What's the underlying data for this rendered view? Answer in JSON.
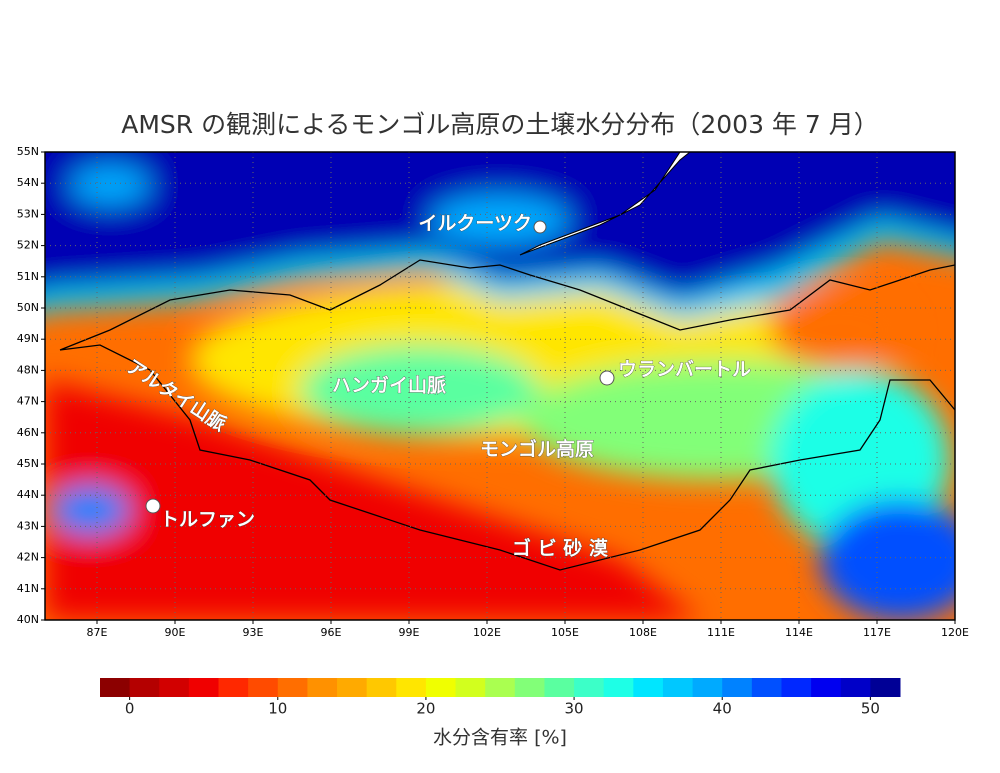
{
  "title": "AMSR の観測によるモンゴル高原の土壌水分分布（2003 年 7 月）",
  "map": {
    "lonlim": [
      85,
      120
    ],
    "latlim": [
      40,
      55
    ],
    "lat_ticks": [
      {
        "value": 55,
        "label": "55N"
      },
      {
        "value": 54,
        "label": "54N"
      },
      {
        "value": 53,
        "label": "53N"
      },
      {
        "value": 52,
        "label": "52N"
      },
      {
        "value": 51,
        "label": "51N"
      },
      {
        "value": 50,
        "label": "50N"
      },
      {
        "value": 49,
        "label": "49N"
      },
      {
        "value": 48,
        "label": "48N"
      },
      {
        "value": 47,
        "label": "47N"
      },
      {
        "value": 46,
        "label": "46N"
      },
      {
        "value": 45,
        "label": "45N"
      },
      {
        "value": 44,
        "label": "44N"
      },
      {
        "value": 43,
        "label": "43N"
      },
      {
        "value": 42,
        "label": "42N"
      },
      {
        "value": 41,
        "label": "41N"
      },
      {
        "value": 40,
        "label": "40N"
      }
    ],
    "lon_ticks": [
      {
        "value": 87,
        "label": "87E"
      },
      {
        "value": 90,
        "label": "90E"
      },
      {
        "value": 93,
        "label": "93E"
      },
      {
        "value": 96,
        "label": "96E"
      },
      {
        "value": 99,
        "label": "99E"
      },
      {
        "value": 102,
        "label": "102E"
      },
      {
        "value": 105,
        "label": "105E"
      },
      {
        "value": 108,
        "label": "108E"
      },
      {
        "value": 111,
        "label": "111E"
      },
      {
        "value": 114,
        "label": "114E"
      },
      {
        "value": 117,
        "label": "117E"
      },
      {
        "value": 120,
        "label": "120E"
      }
    ],
    "places": {
      "irkutsk": "イルクーツク",
      "ulaanbaatar": "ウランバートル",
      "hangai": "ハンガイ山脈",
      "altai": "アルタイ山脈",
      "plateau": "モンゴル高原",
      "turpan": "トルファン",
      "gobi": "ゴ ビ 砂 漠"
    }
  },
  "colorbar": {
    "range": [
      -2,
      52
    ],
    "ticks": [
      0,
      10,
      20,
      30,
      40,
      50
    ],
    "label": "水分含有率 [%]",
    "colors": [
      "#8c0000",
      "#b40000",
      "#d20000",
      "#f00000",
      "#ff2800",
      "#ff4b00",
      "#ff6e00",
      "#ff9100",
      "#ffaa00",
      "#ffc800",
      "#ffe600",
      "#f0ff00",
      "#d2ff1e",
      "#aaff50",
      "#82ff78",
      "#5affa0",
      "#3cffc8",
      "#1effe6",
      "#00e6ff",
      "#00c8ff",
      "#00aaff",
      "#0082ff",
      "#0050ff",
      "#0028ff",
      "#0000f0",
      "#0000c8",
      "#000096"
    ]
  }
}
